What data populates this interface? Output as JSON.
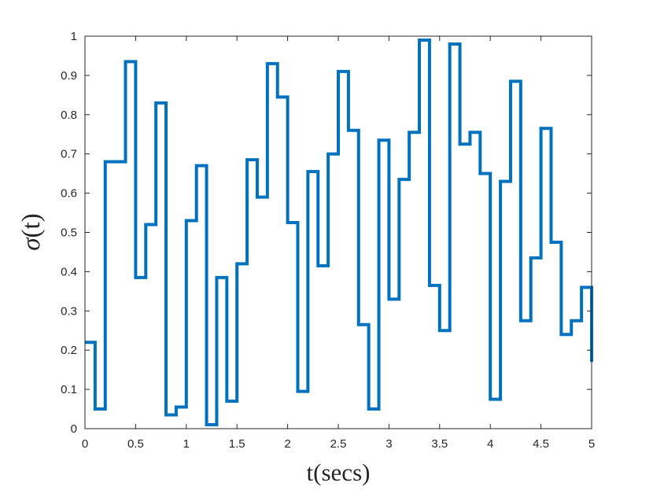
{
  "chart_data": {
    "type": "line",
    "step": true,
    "xlabel": "t(secs)",
    "ylabel_symbol": "σ",
    "ylabel_arg": "(t)",
    "xlim": [
      0,
      5
    ],
    "ylim": [
      0,
      1
    ],
    "grid": false,
    "x_ticks": [
      "0",
      "0.5",
      "1",
      "1.5",
      "2",
      "2.5",
      "3",
      "3.5",
      "4",
      "4.5",
      "5"
    ],
    "y_ticks": [
      "0",
      "0.1",
      "0.2",
      "0.3",
      "0.4",
      "0.5",
      "0.6",
      "0.7",
      "0.8",
      "0.9",
      "1"
    ],
    "series": [
      {
        "color": "#0072BD",
        "x": [
          0,
          0.1,
          0.2,
          0.3,
          0.4,
          0.5,
          0.6,
          0.7,
          0.8,
          0.9,
          1.0,
          1.1,
          1.2,
          1.3,
          1.4,
          1.5,
          1.6,
          1.7,
          1.8,
          1.9,
          2.0,
          2.1,
          2.2,
          2.3,
          2.4,
          2.5,
          2.6,
          2.7,
          2.8,
          2.9,
          3.0,
          3.1,
          3.2,
          3.3,
          3.4,
          3.5,
          3.6,
          3.7,
          3.8,
          3.9,
          4.0,
          4.1,
          4.2,
          4.3,
          4.4,
          4.5,
          4.6,
          4.7,
          4.8,
          4.9,
          5.0
        ],
        "y": [
          0.22,
          0.05,
          0.68,
          0.68,
          0.935,
          0.385,
          0.52,
          0.83,
          0.035,
          0.055,
          0.53,
          0.67,
          0.01,
          0.385,
          0.07,
          0.42,
          0.685,
          0.59,
          0.93,
          0.845,
          0.525,
          0.095,
          0.655,
          0.415,
          0.7,
          0.91,
          0.76,
          0.265,
          0.05,
          0.735,
          0.33,
          0.635,
          0.755,
          0.99,
          0.365,
          0.25,
          0.98,
          0.725,
          0.755,
          0.65,
          0.075,
          0.63,
          0.885,
          0.275,
          0.435,
          0.765,
          0.475,
          0.24,
          0.275,
          0.36,
          0.17
        ]
      }
    ]
  }
}
